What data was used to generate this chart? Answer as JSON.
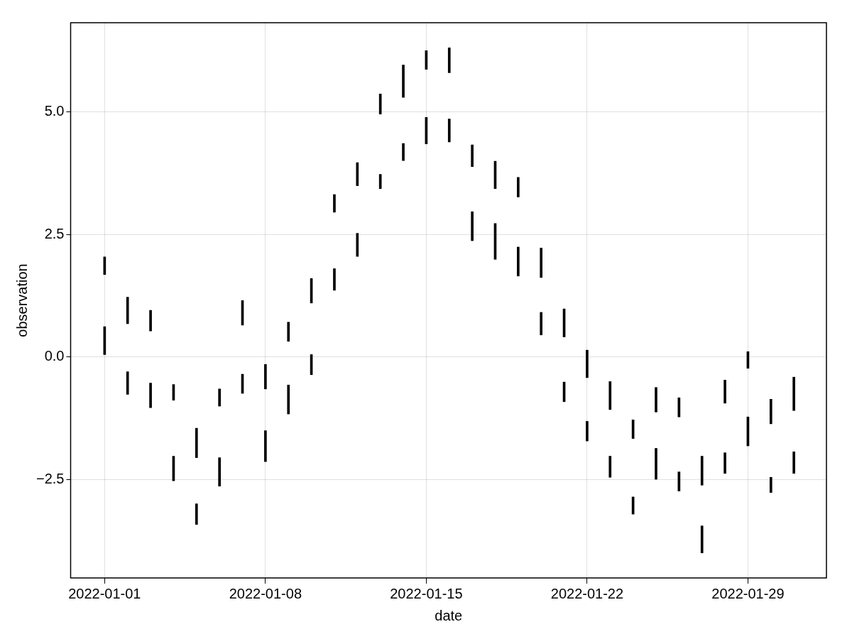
{
  "chart_data": {
    "type": "bar",
    "xlabel": "date",
    "ylabel": "observation",
    "x": [
      "2022-01-01",
      "2022-01-02",
      "2022-01-03",
      "2022-01-04",
      "2022-01-05",
      "2022-01-06",
      "2022-01-07",
      "2022-01-08",
      "2022-01-09",
      "2022-01-10",
      "2022-01-11",
      "2022-01-12",
      "2022-01-13",
      "2022-01-14",
      "2022-01-15",
      "2022-01-16",
      "2022-01-17",
      "2022-01-18",
      "2022-01-19",
      "2022-01-20",
      "2022-01-21",
      "2022-01-22",
      "2022-01-23",
      "2022-01-24",
      "2022-01-25",
      "2022-01-26",
      "2022-01-27",
      "2022-01-28",
      "2022-01-29",
      "2022-01-30",
      "2022-01-31"
    ],
    "series": [
      {
        "color": "#000000",
        "base": [
          1.68,
          0.68,
          0.53,
          -0.88,
          -2.05,
          -1.0,
          0.65,
          -0.65,
          0.32,
          1.1,
          2.95,
          3.49,
          4.95,
          5.29,
          5.86,
          5.79,
          3.88,
          3.43,
          3.26,
          1.62,
          0.41,
          -0.42,
          -1.07,
          -1.66,
          -1.12,
          -1.22,
          -2.61,
          -0.94,
          -0.23,
          -1.36,
          -1.09
        ],
        "values": [
          0.36,
          0.54,
          0.42,
          0.32,
          0.6,
          0.35,
          0.5,
          0.5,
          0.39,
          0.5,
          0.36,
          0.47,
          0.41,
          0.66,
          0.38,
          0.51,
          0.44,
          0.56,
          0.4,
          0.6,
          0.57,
          0.56,
          0.57,
          0.38,
          0.5,
          0.39,
          0.59,
          0.47,
          0.34,
          0.5,
          0.68
        ]
      },
      {
        "color": "#000000",
        "base": [
          0.05,
          -0.76,
          -1.03,
          -2.52,
          -3.41,
          -2.63,
          -0.74,
          -2.13,
          -1.16,
          -0.36,
          1.36,
          2.05,
          3.43,
          4.0,
          4.34,
          4.38,
          2.37,
          1.99,
          1.65,
          0.45,
          -0.91,
          -1.71,
          -2.45,
          -3.2,
          -2.49,
          -2.73,
          -3.99,
          -2.37,
          -1.81,
          -2.76,
          -2.37
        ],
        "values": [
          0.57,
          0.46,
          0.5,
          0.5,
          0.42,
          0.58,
          0.39,
          0.63,
          0.59,
          0.41,
          0.44,
          0.47,
          0.29,
          0.35,
          0.54,
          0.47,
          0.59,
          0.73,
          0.59,
          0.46,
          0.4,
          0.4,
          0.43,
          0.35,
          0.63,
          0.39,
          0.55,
          0.42,
          0.59,
          0.31,
          0.44
        ]
      }
    ],
    "xlim": [
      "2021-12-30T12:30",
      "2022-02-01T10:00"
    ],
    "xticks": [
      "2022-01-01",
      "2022-01-08",
      "2022-01-15",
      "2022-01-22",
      "2022-01-29"
    ],
    "ylim": [
      -4.5,
      6.81
    ],
    "yticks": [
      {
        "value": -2.5,
        "label": "−2.5"
      },
      {
        "value": 0,
        "label": "0.0"
      },
      {
        "value": 2.5,
        "label": "2.5"
      },
      {
        "value": 5,
        "label": "5.0"
      }
    ],
    "grid": true
  }
}
